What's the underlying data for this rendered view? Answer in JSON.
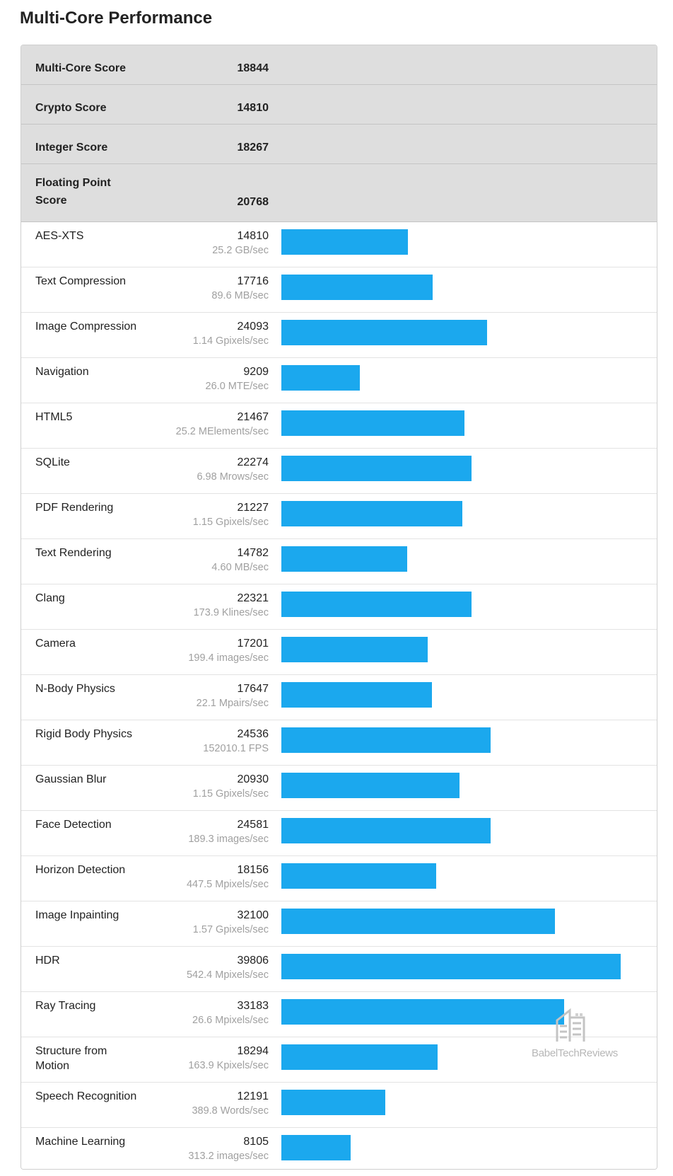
{
  "title": "Multi-Core Performance",
  "colors": {
    "bar": "#1ba8ee",
    "summary_bg": "#dedede",
    "rate_text": "#a0a0a0"
  },
  "max_score": 39806,
  "summary": [
    {
      "label": "Multi-Core Score",
      "value": "18844"
    },
    {
      "label": "Crypto Score",
      "value": "14810"
    },
    {
      "label": "Integer Score",
      "value": "18267"
    },
    {
      "label": "Floating Point Score",
      "value": "20768"
    }
  ],
  "benchmarks": [
    {
      "name": "AES-XTS",
      "score": 14810,
      "rate": "25.2 GB/sec"
    },
    {
      "name": "Text Compression",
      "score": 17716,
      "rate": "89.6 MB/sec"
    },
    {
      "name": "Image Compression",
      "score": 24093,
      "rate": "1.14 Gpixels/sec"
    },
    {
      "name": "Navigation",
      "score": 9209,
      "rate": "26.0 MTE/sec"
    },
    {
      "name": "HTML5",
      "score": 21467,
      "rate": "25.2 MElements/sec"
    },
    {
      "name": "SQLite",
      "score": 22274,
      "rate": "6.98 Mrows/sec"
    },
    {
      "name": "PDF Rendering",
      "score": 21227,
      "rate": "1.15 Gpixels/sec"
    },
    {
      "name": "Text Rendering",
      "score": 14782,
      "rate": "4.60 MB/sec"
    },
    {
      "name": "Clang",
      "score": 22321,
      "rate": "173.9 Klines/sec"
    },
    {
      "name": "Camera",
      "score": 17201,
      "rate": "199.4 images/sec"
    },
    {
      "name": "N-Body Physics",
      "score": 17647,
      "rate": "22.1 Mpairs/sec"
    },
    {
      "name": "Rigid Body Physics",
      "score": 24536,
      "rate": "152010.1 FPS"
    },
    {
      "name": "Gaussian Blur",
      "score": 20930,
      "rate": "1.15 Gpixels/sec"
    },
    {
      "name": "Face Detection",
      "score": 24581,
      "rate": "189.3 images/sec"
    },
    {
      "name": "Horizon Detection",
      "score": 18156,
      "rate": "447.5 Mpixels/sec"
    },
    {
      "name": "Image Inpainting",
      "score": 32100,
      "rate": "1.57 Gpixels/sec"
    },
    {
      "name": "HDR",
      "score": 39806,
      "rate": "542.4 Mpixels/sec"
    },
    {
      "name": "Ray Tracing",
      "score": 33183,
      "rate": "26.6 Mpixels/sec"
    },
    {
      "name": "Structure from Motion",
      "score": 18294,
      "rate": "163.9 Kpixels/sec"
    },
    {
      "name": "Speech Recognition",
      "score": 12191,
      "rate": "389.8 Words/sec"
    },
    {
      "name": "Machine Learning",
      "score": 8105,
      "rate": "313.2 images/sec"
    }
  ],
  "watermark": {
    "icon": "building-logo-icon",
    "text": "BabelTechReviews"
  }
}
